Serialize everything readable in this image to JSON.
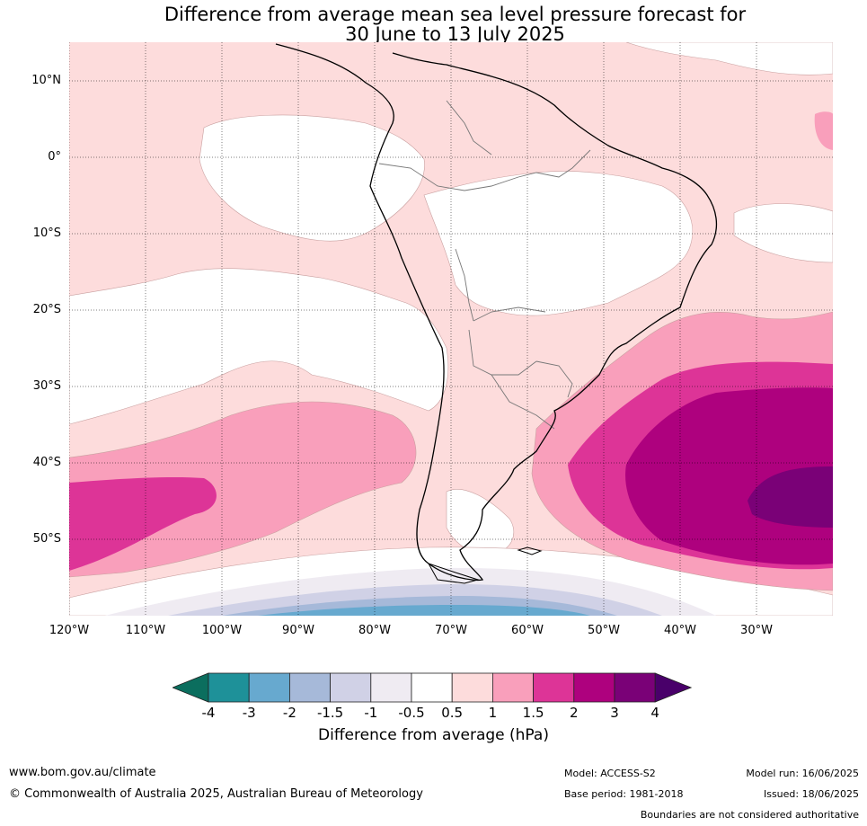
{
  "title": {
    "line1": "Difference from average mean sea level pressure forecast for",
    "line2": "30 June to 13 July 2025"
  },
  "map": {
    "lat_labels": [
      "10°N",
      "0°",
      "10°S",
      "20°S",
      "30°S",
      "40°S",
      "50°S"
    ],
    "lon_labels": [
      "120°W",
      "110°W",
      "100°W",
      "90°W",
      "80°W",
      "70°W",
      "60°W",
      "50°W",
      "40°W",
      "30°W"
    ]
  },
  "legend": {
    "ticks": [
      "-4",
      "-3",
      "-2",
      "-1.5",
      "-1",
      "-0.5",
      "0.5",
      "1",
      "1.5",
      "2",
      "3",
      "4"
    ],
    "colors": [
      "#0b6e5e",
      "#1e9199",
      "#67a9cf",
      "#a6b9d9",
      "#d0d1e6",
      "#efebf2",
      "#ffffff",
      "#fddcdc",
      "#f99fbb",
      "#dd3497",
      "#ae017e",
      "#7a0177",
      "#49006a"
    ],
    "label": "Difference from average (hPa)"
  },
  "footer": {
    "website": "www.bom.gov.au/climate",
    "copyright": "© Commonwealth of Australia 2025, Australian Bureau of Meteorology",
    "model": "Model: ACCESS-S2",
    "base_period": "Base period: 1981-2018",
    "model_run": "Model run: 16/06/2025",
    "issued": "Issued: 18/06/2025",
    "disclaimer": "Boundaries are not considered authoritative"
  }
}
